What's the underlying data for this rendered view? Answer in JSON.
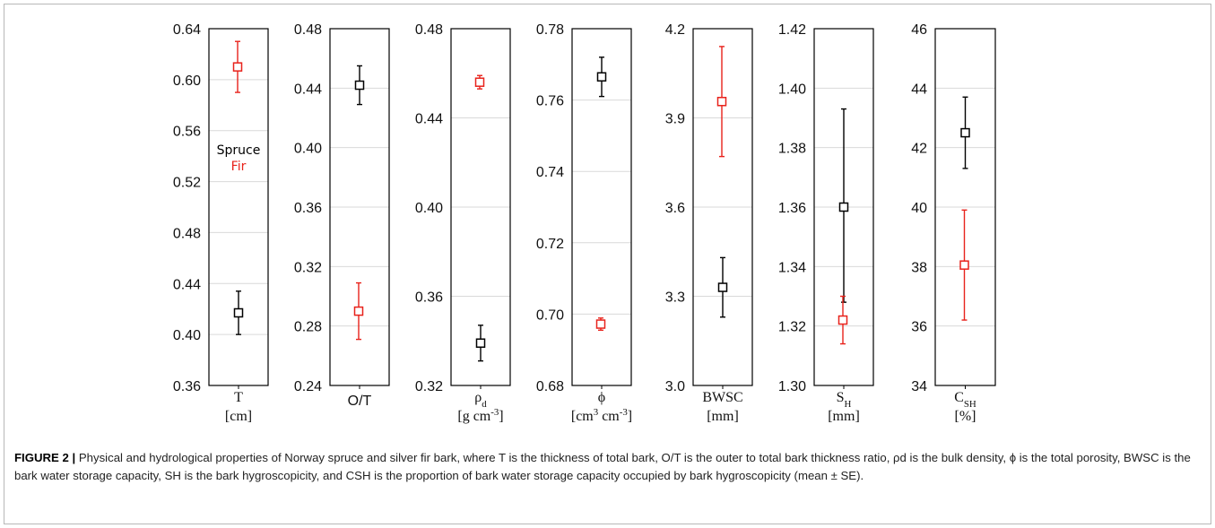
{
  "chart_data": {
    "type": "scatter",
    "subtype": "error-bar panels",
    "legend": {
      "placement": "inside first panel, middle-left",
      "entries": [
        {
          "name": "Spruce",
          "color": "#000000"
        },
        {
          "name": "Fir",
          "color": "#e8221b"
        }
      ]
    },
    "colors": {
      "spruce": "#000000",
      "fir": "#e8221b",
      "grid": "#d9d9d9"
    },
    "grid": true,
    "panels": [
      {
        "id": "T",
        "xlabel": "T",
        "xunit": "[cm]",
        "ylim": [
          0.36,
          0.64
        ],
        "ticks": [
          "0.36",
          "0.40",
          "0.44",
          "0.48",
          "0.52",
          "0.56",
          "0.60",
          "0.64"
        ],
        "series": [
          {
            "name": "Spruce",
            "mean": 0.417,
            "lower": 0.4,
            "upper": 0.434
          },
          {
            "name": "Fir",
            "mean": 0.61,
            "lower": 0.59,
            "upper": 0.63
          }
        ]
      },
      {
        "id": "OT",
        "xlabel": "O/T",
        "xunit": "",
        "ylim": [
          0.24,
          0.48
        ],
        "ticks": [
          "0.24",
          "0.28",
          "0.32",
          "0.36",
          "0.40",
          "0.44",
          "0.48"
        ],
        "series": [
          {
            "name": "Spruce",
            "mean": 0.442,
            "lower": 0.429,
            "upper": 0.455
          },
          {
            "name": "Fir",
            "mean": 0.29,
            "lower": 0.271,
            "upper": 0.309
          }
        ]
      },
      {
        "id": "rho",
        "xlabel": "ρd",
        "xunit": "[g cm-3]",
        "ylim": [
          0.32,
          0.48
        ],
        "ticks": [
          "0.32",
          "0.36",
          "0.40",
          "0.44",
          "0.48"
        ],
        "series": [
          {
            "name": "Spruce",
            "mean": 0.339,
            "lower": 0.331,
            "upper": 0.347
          },
          {
            "name": "Fir",
            "mean": 0.456,
            "lower": 0.453,
            "upper": 0.459
          }
        ]
      },
      {
        "id": "phi",
        "xlabel": "ϕ",
        "xunit": "[cm3 cm-3]",
        "ylim": [
          0.68,
          0.78
        ],
        "ticks": [
          "0.68",
          "0.70",
          "0.72",
          "0.74",
          "0.76",
          "0.78"
        ],
        "series": [
          {
            "name": "Spruce",
            "mean": 0.7665,
            "lower": 0.761,
            "upper": 0.772
          },
          {
            "name": "Fir",
            "mean": 0.6972,
            "lower": 0.6955,
            "upper": 0.6989
          }
        ]
      },
      {
        "id": "BWSC",
        "xlabel": "BWSC",
        "xunit": "[mm]",
        "ylim": [
          3.0,
          4.2
        ],
        "ticks": [
          "3.0",
          "3.3",
          "3.6",
          "3.9",
          "4.2"
        ],
        "series": [
          {
            "name": "Spruce",
            "mean": 3.33,
            "lower": 3.23,
            "upper": 3.43
          },
          {
            "name": "Fir",
            "mean": 3.955,
            "lower": 3.77,
            "upper": 4.14
          }
        ]
      },
      {
        "id": "SH",
        "xlabel": "SH",
        "xunit": "[mm]",
        "ylim": [
          1.3,
          1.42
        ],
        "ticks": [
          "1.30",
          "1.32",
          "1.34",
          "1.36",
          "1.38",
          "1.40",
          "1.42"
        ],
        "series": [
          {
            "name": "Spruce",
            "mean": 1.36,
            "lower": 1.328,
            "upper": 1.393
          },
          {
            "name": "Fir",
            "mean": 1.322,
            "lower": 1.314,
            "upper": 1.33
          }
        ]
      },
      {
        "id": "CSH",
        "xlabel": "CSH",
        "xunit": "[%]",
        "ylim": [
          34,
          46
        ],
        "ticks": [
          "34",
          "36",
          "38",
          "40",
          "42",
          "44",
          "46"
        ],
        "series": [
          {
            "name": "Spruce",
            "mean": 42.5,
            "lower": 41.3,
            "upper": 43.7
          },
          {
            "name": "Fir",
            "mean": 38.05,
            "lower": 36.2,
            "upper": 39.9
          }
        ]
      }
    ]
  },
  "caption": {
    "label": "FIGURE 2 |",
    "text": "Physical and hydrological properties of Norway spruce and silver fir bark, where T is the thickness of total bark, O/T is the outer to total bark thickness ratio, ρd is the bulk density, ϕ is the total porosity, BWSC is the bark water storage capacity, SH is the bark hygroscopicity, and CSH is the proportion of bark water storage capacity occupied by bark hygroscopicity (mean ± SE)."
  }
}
